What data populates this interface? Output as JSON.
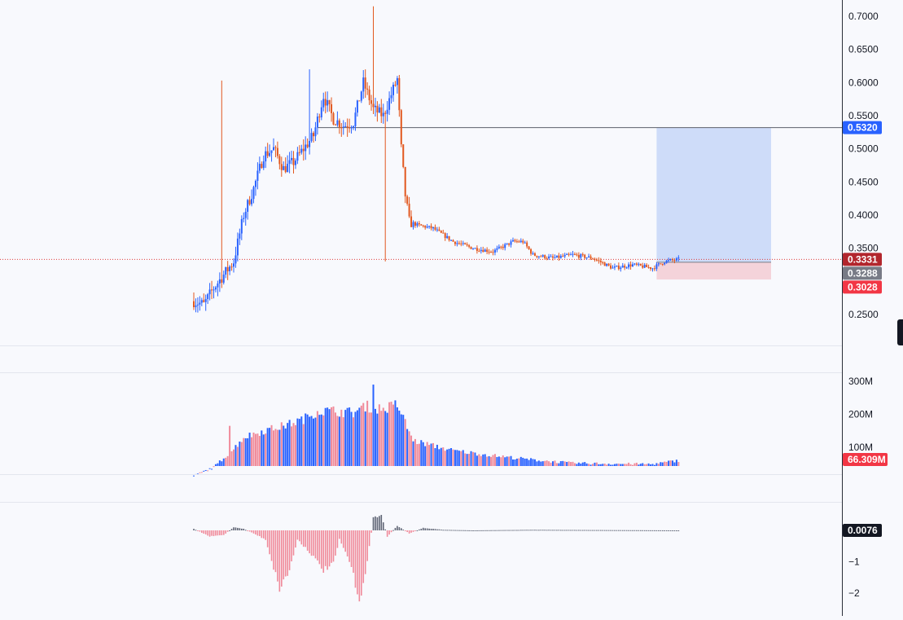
{
  "colors": {
    "up": "#2962ff",
    "down": "#e2581f",
    "target_zone": "#c7d7f8",
    "stop_zone": "#f3ccd3",
    "volume_up": "#2962ff",
    "volume_down": "#f08a9a",
    "histogram_up": "#5d6373",
    "histogram_down": "#f08a9a"
  },
  "price_pane": {
    "axis_ticks": [
      "0.7000",
      "0.6500",
      "0.6000",
      "0.5500",
      "0.5000",
      "0.4500",
      "0.4000",
      "0.3500",
      "0.2500"
    ],
    "tick_values": [
      0.7,
      0.65,
      0.6,
      0.55,
      0.5,
      0.45,
      0.4,
      0.35,
      0.25
    ],
    "labels": {
      "target": "0.5320",
      "last": "0.3331",
      "entry": "0.3288",
      "stop": "0.3028"
    },
    "label_values": {
      "target": 0.532,
      "last": 0.3331,
      "entry": 0.3288,
      "stop": 0.3028
    },
    "horizontal_line": 0.532
  },
  "volume_pane": {
    "axis_ticks": [
      "300M",
      "200M",
      "100M"
    ],
    "tick_values": [
      300,
      200,
      100
    ],
    "last_label": "66.309M"
  },
  "indicator_pane": {
    "axis_ticks": [
      "−1",
      "−2"
    ],
    "tick_values": [
      -1,
      -2
    ],
    "last_label": "0.0076"
  },
  "chart_data": {
    "type": "candlestick",
    "ylim": [
      0.2,
      0.72
    ],
    "anchors": [
      [
        0,
        0.27
      ],
      [
        5,
        0.265
      ],
      [
        10,
        0.29
      ],
      [
        15,
        0.31
      ],
      [
        20,
        0.33
      ],
      [
        25,
        0.4
      ],
      [
        30,
        0.44
      ],
      [
        35,
        0.49
      ],
      [
        40,
        0.5
      ],
      [
        45,
        0.47
      ],
      [
        50,
        0.48
      ],
      [
        55,
        0.5
      ],
      [
        60,
        0.52
      ],
      [
        65,
        0.58
      ],
      [
        70,
        0.545
      ],
      [
        75,
        0.535
      ],
      [
        80,
        0.54
      ],
      [
        85,
        0.6
      ],
      [
        90,
        0.56
      ],
      [
        95,
        0.55
      ],
      [
        100,
        0.59
      ],
      [
        102,
        0.605
      ],
      [
        104,
        0.5
      ],
      [
        106,
        0.43
      ],
      [
        108,
        0.39
      ],
      [
        112,
        0.385
      ],
      [
        120,
        0.38
      ],
      [
        130,
        0.36
      ],
      [
        140,
        0.35
      ],
      [
        150,
        0.345
      ],
      [
        160,
        0.36
      ],
      [
        165,
        0.36
      ],
      [
        170,
        0.34
      ],
      [
        180,
        0.335
      ],
      [
        190,
        0.34
      ],
      [
        200,
        0.335
      ],
      [
        210,
        0.32
      ],
      [
        220,
        0.325
      ],
      [
        230,
        0.32
      ],
      [
        236,
        0.33
      ],
      [
        243,
        0.333
      ]
    ],
    "volume_anchors": [
      [
        0,
        15
      ],
      [
        10,
        40
      ],
      [
        20,
        95
      ],
      [
        25,
        130
      ],
      [
        35,
        150
      ],
      [
        45,
        165
      ],
      [
        55,
        185
      ],
      [
        62,
        210
      ],
      [
        70,
        210
      ],
      [
        80,
        205
      ],
      [
        86,
        225
      ],
      [
        95,
        215
      ],
      [
        102,
        230
      ],
      [
        106,
        175
      ],
      [
        110,
        120
      ],
      [
        130,
        90
      ],
      [
        150,
        75
      ],
      [
        170,
        62
      ],
      [
        190,
        52
      ],
      [
        210,
        50
      ],
      [
        230,
        49
      ],
      [
        243,
        60
      ]
    ],
    "histogram_anchors": [
      [
        0,
        0.05
      ],
      [
        8,
        -0.2
      ],
      [
        15,
        -0.15
      ],
      [
        20,
        0.1
      ],
      [
        25,
        0.05
      ],
      [
        30,
        -0.1
      ],
      [
        36,
        -0.3
      ],
      [
        43,
        -1.9
      ],
      [
        48,
        -1.3
      ],
      [
        52,
        -0.3
      ],
      [
        58,
        -0.7
      ],
      [
        65,
        -1.3
      ],
      [
        70,
        -1.1
      ],
      [
        73,
        -0.3
      ],
      [
        78,
        -1.0
      ],
      [
        83,
        -2.25
      ],
      [
        86,
        -1.5
      ],
      [
        90,
        0.4
      ],
      [
        94,
        0.5
      ],
      [
        97,
        -0.2
      ],
      [
        102,
        0.15
      ],
      [
        108,
        -0.1
      ],
      [
        115,
        0.08
      ],
      [
        125,
        0.02
      ],
      [
        140,
        0.0
      ],
      [
        170,
        0.02
      ],
      [
        243,
        0.0
      ]
    ]
  }
}
